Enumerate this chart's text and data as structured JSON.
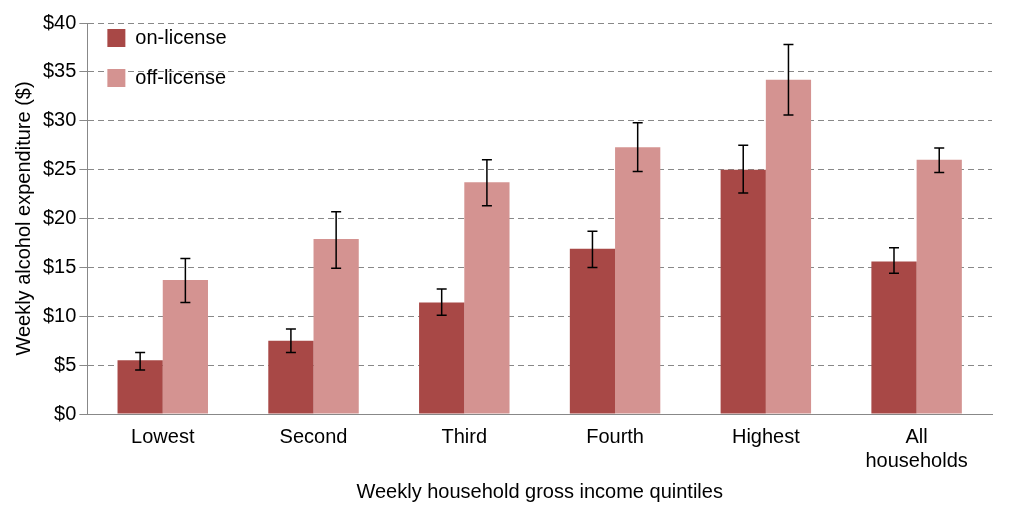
{
  "chart_data": {
    "type": "bar",
    "xlabel": "Weekly household gross income quintiles",
    "ylabel": "Weekly alcohol expenditure ($)",
    "categories": [
      "Lowest",
      "Second",
      "Third",
      "Fourth",
      "Highest",
      "All households"
    ],
    "series": [
      {
        "name": "on-license",
        "color": "#a84846",
        "values": [
          5.5,
          7.5,
          11.4,
          16.9,
          25.0,
          15.6
        ],
        "errors": [
          [
            4.5,
            6.3
          ],
          [
            6.3,
            8.7
          ],
          [
            10.1,
            12.8
          ],
          [
            15.0,
            18.7
          ],
          [
            22.6,
            27.5
          ],
          [
            14.4,
            17.0
          ]
        ]
      },
      {
        "name": "off-license",
        "color": "#d49391",
        "values": [
          13.7,
          17.9,
          23.7,
          27.3,
          34.2,
          26.0
        ],
        "errors": [
          [
            11.4,
            15.9
          ],
          [
            14.9,
            20.7
          ],
          [
            21.3,
            26.0
          ],
          [
            24.8,
            29.8
          ],
          [
            30.6,
            37.8
          ],
          [
            24.7,
            27.2
          ]
        ]
      }
    ],
    "ylim": [
      0,
      40
    ],
    "yticks": [
      {
        "value": 0,
        "label": "$0"
      },
      {
        "value": 5,
        "label": "$5"
      },
      {
        "value": 10,
        "label": "$10"
      },
      {
        "value": 15,
        "label": "$15"
      },
      {
        "value": 20,
        "label": "$20"
      },
      {
        "value": 25,
        "label": "$25"
      },
      {
        "value": 30,
        "label": "$30"
      },
      {
        "value": 35,
        "label": "$35"
      },
      {
        "value": 40,
        "label": "$40"
      }
    ],
    "grid": "y",
    "legend": "top left"
  }
}
